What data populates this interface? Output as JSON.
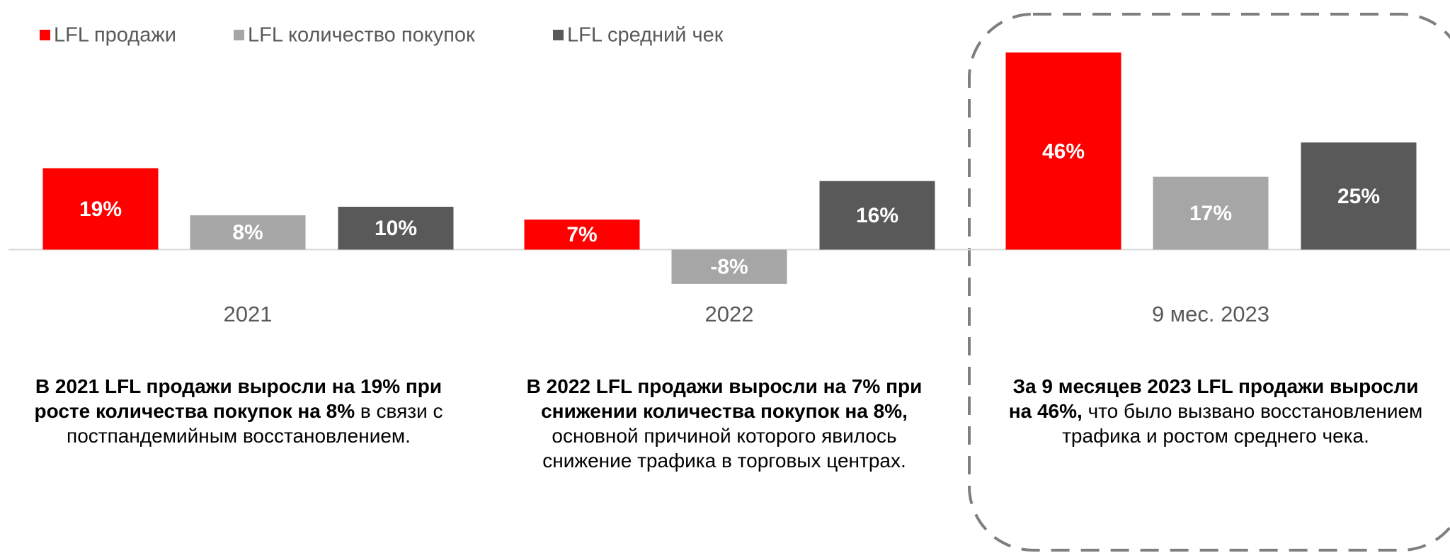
{
  "chart_data": {
    "type": "bar",
    "categories": [
      "2021",
      "2022",
      "9 мес. 2023"
    ],
    "series": [
      {
        "name": "LFL продажи",
        "color": "#ff0000",
        "values": [
          19,
          7,
          46
        ],
        "value_labels": [
          "19%",
          "7%",
          "46%"
        ]
      },
      {
        "name": "LFL количество покупок",
        "color": "#a6a6a6",
        "values": [
          8,
          -8,
          17
        ],
        "value_labels": [
          "8%",
          "-8%",
          "17%"
        ]
      },
      {
        "name": "LFL средний чек",
        "color": "#595959",
        "values": [
          10,
          16,
          25
        ],
        "value_labels": [
          "10%",
          "16%",
          "25%"
        ]
      }
    ],
    "ylim": [
      -10,
      50
    ],
    "legend": "top-left",
    "notes": [
      {
        "bold": "В 2021 LFL продажи выросли на 19% при росте количества покупок на 8%",
        "text": " в связи с постпандемийным восстановлением."
      },
      {
        "bold": "В 2022 LFL продажи выросли на 7% при снижении количества покупок на 8%,",
        "text": " основной причиной которого явилось  снижение трафика в торговых центрах."
      },
      {
        "bold": "За 9 месяцев 2023 LFL продажи выросли на 46%,",
        "text": " что было вызвано восстановлением трафика и ростом среднего чека."
      }
    ]
  }
}
